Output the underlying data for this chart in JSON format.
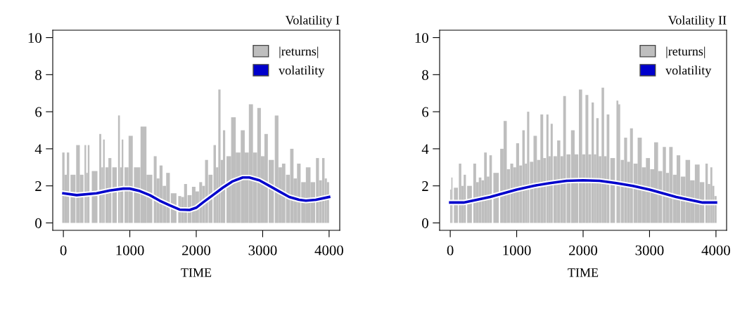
{
  "chart_data": [
    {
      "type": "line",
      "title": "Volatility I",
      "xlabel": "TIME",
      "xlim": [
        -160,
        4160
      ],
      "xticks": [
        0,
        1000,
        2000,
        3000,
        4000
      ],
      "ylim": [
        -0.4,
        10.4
      ],
      "yticks": [
        0,
        2,
        4,
        6,
        8,
        10
      ],
      "grid": false,
      "legend": "top right",
      "series": [
        {
          "name": "|returns|",
          "type": "bar",
          "color": "#bebebe",
          "x": [
            0,
            35,
            70,
            145,
            220,
            275,
            330,
            355,
            380,
            470,
            555,
            585,
            610,
            655,
            700,
            770,
            837,
            865,
            890,
            950,
            1013,
            1110,
            1206,
            1295,
            1382,
            1425,
            1470,
            1520,
            1575,
            1660,
            1751,
            1795,
            1839,
            1900,
            1962,
            2015,
            2067,
            2110,
            2155,
            2215,
            2278,
            2315,
            2349,
            2385,
            2419,
            2490,
            2560,
            2630,
            2700,
            2760,
            2823,
            2885,
            2946,
            3000,
            3052,
            3130,
            3210,
            3265,
            3316,
            3380,
            3439,
            3490,
            3544,
            3615,
            3685,
            3755,
            3825,
            3870,
            3913,
            3950,
            3983
          ],
          "values": [
            3.8,
            2.6,
            3.8,
            2.6,
            4.2,
            2.6,
            4.2,
            2.7,
            4.2,
            2.8,
            4.8,
            3.0,
            4.5,
            3.0,
            3.5,
            3.0,
            5.8,
            3.0,
            4.5,
            3.0,
            4.7,
            3.0,
            5.2,
            2.6,
            3.6,
            2.4,
            3.1,
            2.0,
            2.7,
            1.6,
            1.45,
            1.4,
            2.1,
            1.5,
            1.95,
            1.7,
            2.2,
            2.0,
            3.4,
            2.6,
            4.2,
            3.0,
            7.2,
            3.4,
            5.0,
            3.6,
            5.7,
            3.8,
            5.0,
            3.8,
            6.4,
            3.8,
            6.2,
            3.6,
            4.8,
            3.4,
            5.8,
            3.0,
            3.2,
            2.6,
            4.0,
            2.4,
            3.2,
            2.2,
            3.0,
            2.2,
            3.5,
            2.3,
            3.5,
            2.4,
            2.2
          ]
        },
        {
          "name": "volatility",
          "color": "#0000cc",
          "x": [
            0,
            200,
            500,
            700,
            900,
            1000,
            1150,
            1300,
            1450,
            1600,
            1750,
            1900,
            2000,
            2100,
            2250,
            2400,
            2550,
            2700,
            2800,
            2950,
            3100,
            3250,
            3400,
            3550,
            3650,
            3800,
            4000
          ],
          "values": [
            1.6,
            1.5,
            1.6,
            1.75,
            1.85,
            1.85,
            1.72,
            1.5,
            1.2,
            0.95,
            0.72,
            0.7,
            0.82,
            1.1,
            1.5,
            1.9,
            2.25,
            2.45,
            2.45,
            2.3,
            2.0,
            1.7,
            1.4,
            1.25,
            1.2,
            1.25,
            1.4
          ]
        }
      ]
    },
    {
      "type": "line",
      "title": "Volatility II",
      "xlabel": "TIME",
      "xlim": [
        -160,
        4160
      ],
      "xticks": [
        0,
        1000,
        2000,
        3000,
        4000
      ],
      "ylim": [
        -0.4,
        10.4
      ],
      "yticks": [
        0,
        2,
        4,
        6,
        8,
        10
      ],
      "grid": false,
      "legend": "top right",
      "series": [
        {
          "name": "|returns|",
          "type": "bar",
          "color": "#bebebe",
          "x": [
            7,
            25,
            85,
            148,
            185,
            219,
            290,
            368,
            410,
            449,
            490,
            530,
            570,
            608,
            690,
            777,
            827,
            875,
            926,
            970,
            1014,
            1060,
            1103,
            1140,
            1173,
            1225,
            1279,
            1330,
            1378,
            1420,
            1463,
            1495,
            1527,
            1580,
            1633,
            1680,
            1721,
            1780,
            1845,
            1900,
            1961,
            2010,
            2057,
            2100,
            2145,
            2180,
            2216,
            2255,
            2297,
            2335,
            2375,
            2445,
            2516,
            2544,
            2590,
            2640,
            2685,
            2728,
            2790,
            2852,
            2915,
            2976,
            3040,
            3099,
            3160,
            3223,
            3270,
            3322,
            3380,
            3435,
            3505,
            3576,
            3645,
            3718,
            3790,
            3859,
            3895,
            3930,
            3960,
            3993
          ],
          "values": [
            1.8,
            2.45,
            1.9,
            3.2,
            2.0,
            2.6,
            2.0,
            3.2,
            2.2,
            2.45,
            2.3,
            3.8,
            2.5,
            3.65,
            2.7,
            4.0,
            5.5,
            2.9,
            3.2,
            3.0,
            4.3,
            3.1,
            5.0,
            3.2,
            6.0,
            3.3,
            4.7,
            3.4,
            5.85,
            3.5,
            5.85,
            3.6,
            5.35,
            3.6,
            4.45,
            3.6,
            6.85,
            3.7,
            5.0,
            3.7,
            7.2,
            3.7,
            6.9,
            3.7,
            6.5,
            3.7,
            5.65,
            3.6,
            7.3,
            3.6,
            5.85,
            3.5,
            6.6,
            6.4,
            3.4,
            4.6,
            3.3,
            5.1,
            3.2,
            4.6,
            3.0,
            3.5,
            2.9,
            4.35,
            2.8,
            4.1,
            2.7,
            4.1,
            2.6,
            3.65,
            2.5,
            3.4,
            2.3,
            3.15,
            2.2,
            3.2,
            2.1,
            3.0,
            2.0,
            1.45
          ]
        },
        {
          "name": "volatility",
          "color": "#0000cc",
          "x": [
            0,
            200,
            400,
            600,
            800,
            1000,
            1250,
            1500,
            1750,
            2000,
            2250,
            2500,
            2750,
            3000,
            3200,
            3400,
            3600,
            3800,
            4000
          ],
          "values": [
            1.1,
            1.1,
            1.25,
            1.4,
            1.6,
            1.8,
            2.0,
            2.15,
            2.27,
            2.3,
            2.27,
            2.15,
            2.0,
            1.8,
            1.6,
            1.4,
            1.25,
            1.1,
            1.1
          ]
        }
      ]
    }
  ]
}
